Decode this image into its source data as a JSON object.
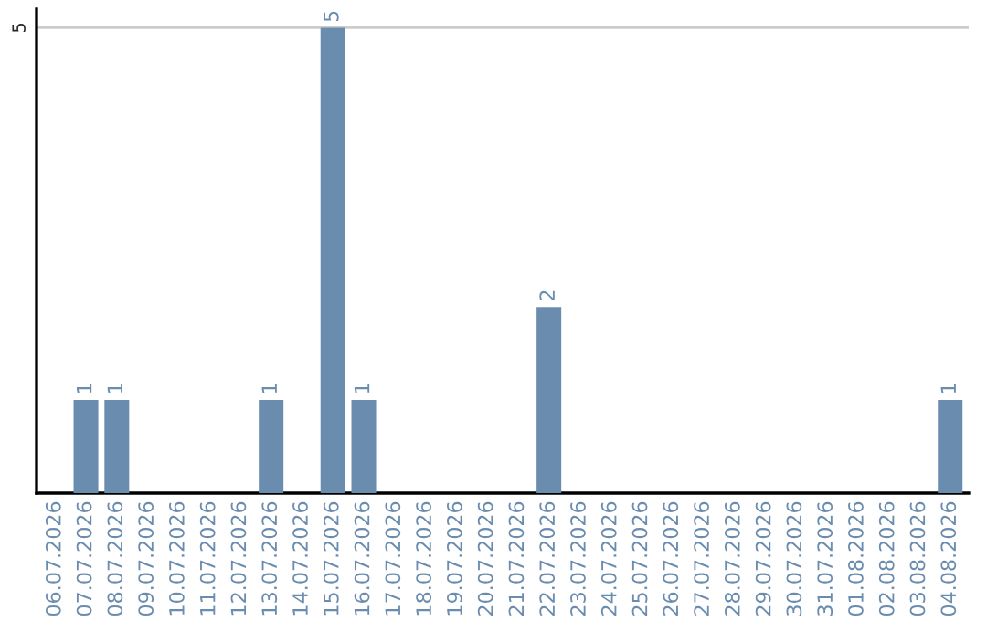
{
  "chart_data": {
    "type": "bar",
    "categories": [
      "06.07.2026",
      "07.07.2026",
      "08.07.2026",
      "09.07.2026",
      "10.07.2026",
      "11.07.2026",
      "12.07.2026",
      "13.07.2026",
      "14.07.2026",
      "15.07.2026",
      "16.07.2026",
      "17.07.2026",
      "18.07.2026",
      "19.07.2026",
      "20.07.2026",
      "21.07.2026",
      "22.07.2026",
      "23.07.2026",
      "24.07.2026",
      "25.07.2026",
      "26.07.2026",
      "27.07.2026",
      "28.07.2026",
      "29.07.2026",
      "30.07.2026",
      "31.07.2026",
      "01.08.2026",
      "02.08.2026",
      "03.08.2026",
      "04.08.2026"
    ],
    "values": [
      0,
      1,
      1,
      0,
      0,
      0,
      0,
      1,
      0,
      5,
      1,
      0,
      0,
      0,
      0,
      0,
      2,
      0,
      0,
      0,
      0,
      0,
      0,
      0,
      0,
      0,
      0,
      0,
      0,
      1
    ],
    "value_labels": [
      null,
      "1",
      "1",
      null,
      null,
      null,
      null,
      "1",
      null,
      "5",
      "1",
      null,
      null,
      null,
      null,
      null,
      "2",
      null,
      null,
      null,
      null,
      null,
      null,
      null,
      null,
      null,
      null,
      null,
      null,
      "1"
    ],
    "color": "#6a8caf",
    "ylim": [
      0,
      5.2
    ],
    "yticks": [
      5
    ],
    "grid": "y",
    "legend": false
  }
}
